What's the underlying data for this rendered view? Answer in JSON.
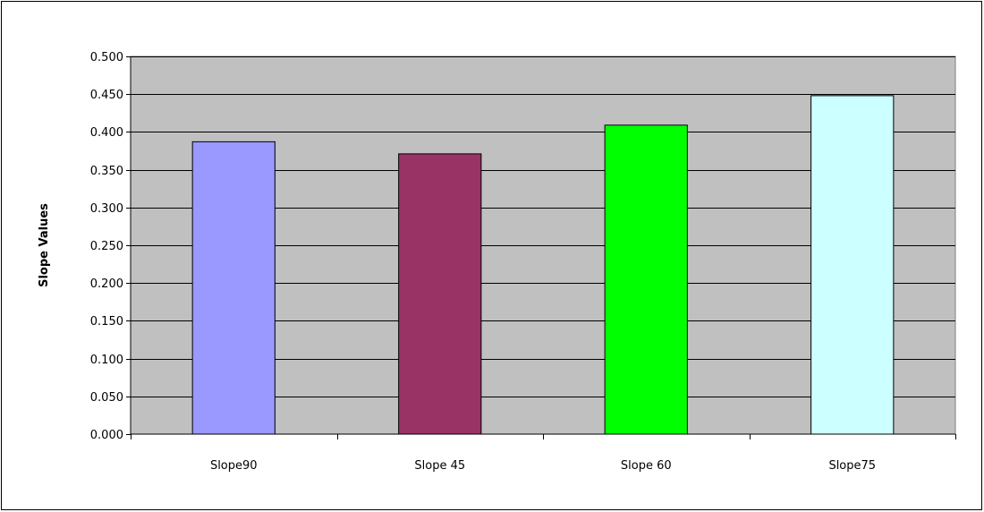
{
  "chart_data": {
    "type": "bar",
    "title": "",
    "xlabel": "",
    "ylabel": "Slope Values",
    "categories": [
      "Slope90",
      "Slope 45",
      "Slope 60",
      "Slope75"
    ],
    "values": [
      0.387,
      0.371,
      0.409,
      0.448
    ],
    "bar_colors": [
      "#9999FF",
      "#993366",
      "#00FF00",
      "#CCFFFF"
    ],
    "ylim": [
      0,
      0.5
    ],
    "y_ticks": [
      "0.000",
      "0.050",
      "0.100",
      "0.150",
      "0.200",
      "0.250",
      "0.300",
      "0.350",
      "0.400",
      "0.450",
      "0.500"
    ],
    "grid": true,
    "legend": "none",
    "plot_background": "#C0C0C0"
  }
}
